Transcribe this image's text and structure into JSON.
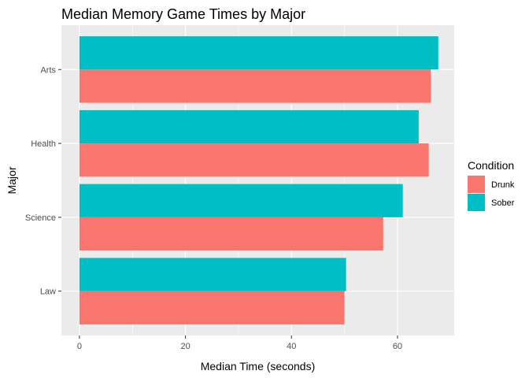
{
  "chart_data": {
    "type": "bar",
    "orientation": "horizontal",
    "title": "Median Memory Game Times by Major",
    "xlabel": "Median Time (seconds)",
    "ylabel": "Major",
    "categories": [
      "Law",
      "Science",
      "Health",
      "Arts"
    ],
    "series": [
      {
        "name": "Drunk",
        "values": [
          50,
          57.3,
          65.9,
          66.3
        ],
        "color": "#F8766D"
      },
      {
        "name": "Sober",
        "values": [
          50.3,
          61,
          64,
          67.7
        ],
        "color": "#00BFC4"
      }
    ],
    "xlim": [
      -3.4,
      70.7
    ],
    "xticks": [
      0,
      20,
      40,
      60
    ],
    "xtick_labels": [
      "0",
      "20",
      "40",
      "60"
    ],
    "grid": true,
    "panel_background": "#EBEBEB",
    "grid_color": "#FFFFFF",
    "legend": {
      "title": "Condition",
      "position": "right",
      "entries": [
        "Drunk",
        "Sober"
      ]
    }
  }
}
